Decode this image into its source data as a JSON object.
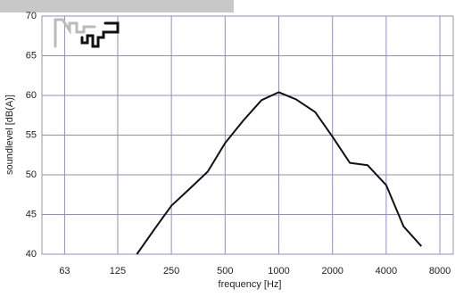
{
  "chart_data": {
    "type": "line",
    "x_label": "frequency [Hz]",
    "y_label": "soundlevel [dB(A)]",
    "x": [
      160,
      200,
      250,
      315,
      400,
      500,
      630,
      800,
      1000,
      1250,
      1600,
      2000,
      2500,
      3150,
      4000,
      5000,
      6300
    ],
    "series": [
      {
        "color": "#111111",
        "values": [
          40,
          43.1,
          46.1,
          48.2,
          50.4,
          54.0,
          56.8,
          59.4,
          60.4,
          59.5,
          57.9,
          54.8,
          51.5,
          51.2,
          48.7,
          43.5,
          41.0
        ]
      }
    ],
    "xlim": [
      47,
      9500
    ],
    "xscale": "log",
    "xticks": [
      63,
      125,
      250,
      500,
      1000,
      2000,
      4000,
      8000
    ],
    "ylim": [
      40,
      70
    ],
    "yticks": [
      40,
      45,
      50,
      55,
      60,
      65,
      70
    ],
    "grid": true,
    "grid_color": "#8f8fc8"
  }
}
